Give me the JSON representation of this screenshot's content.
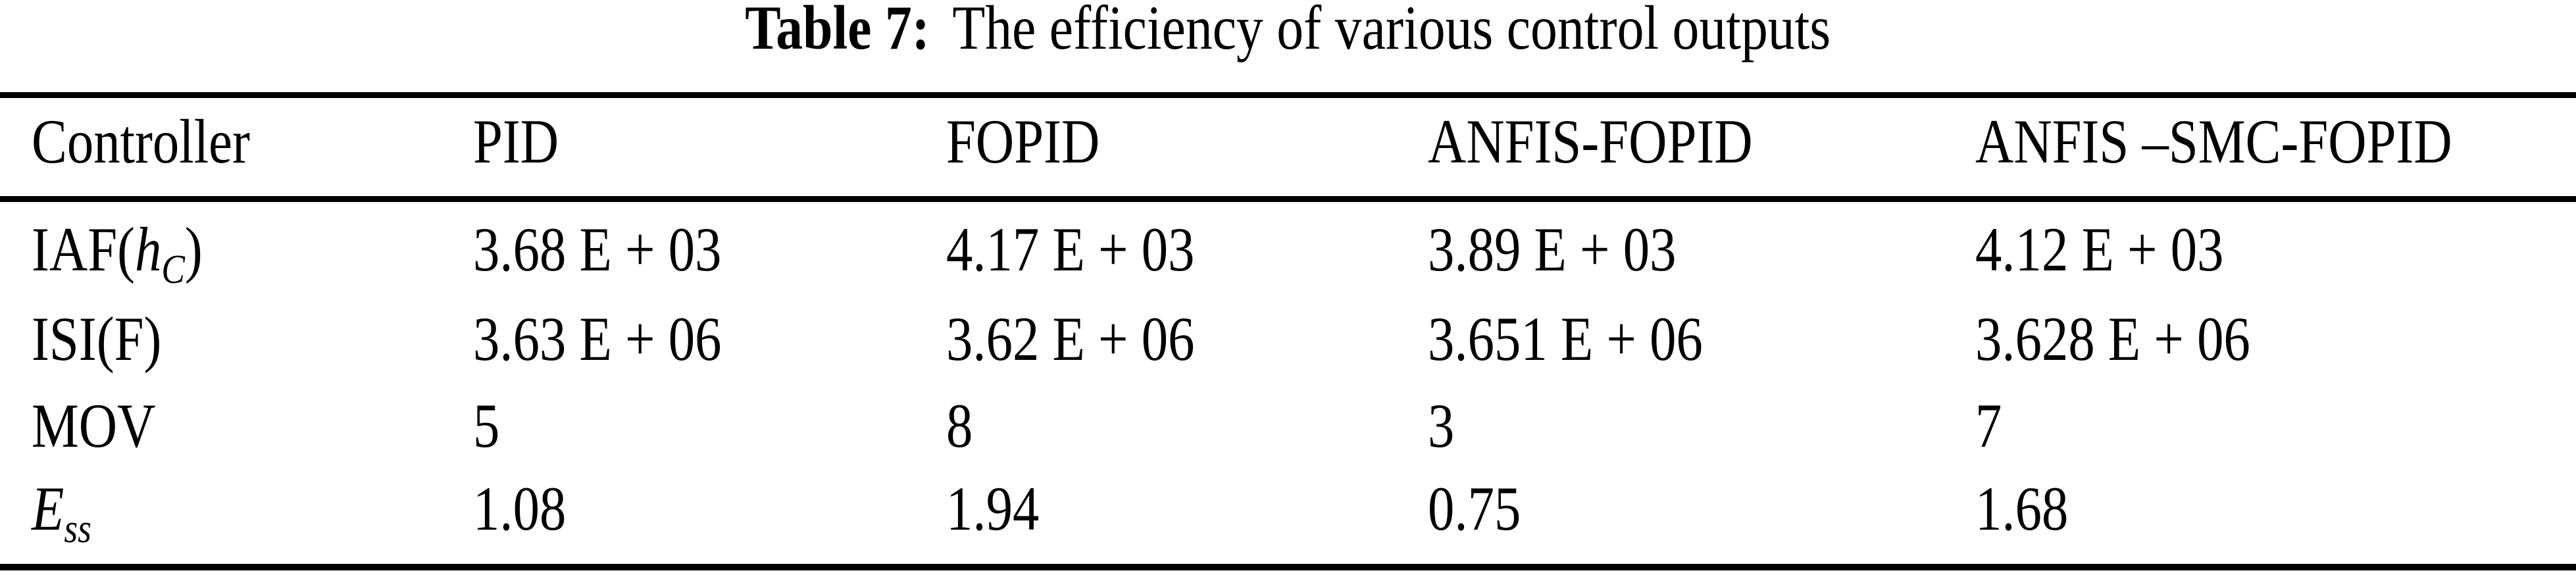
{
  "caption": {
    "label": "Table 7:",
    "text": "The efficiency of various control outputs"
  },
  "table": {
    "headers": [
      "Controller",
      "PID",
      "FOPID",
      "ANFIS-FOPID",
      "ANFIS –SMC-FOPID"
    ],
    "rows": [
      {
        "label_pre": "IAF(",
        "label_var": "h",
        "label_sub": "C",
        "label_post": ")",
        "cells": [
          "3.68 E + 03",
          "4.17 E + 03",
          "3.89 E + 03",
          "4.12 E + 03"
        ]
      },
      {
        "label_pre": "ISI(F)",
        "cells": [
          "3.63 E + 06",
          "3.62 E + 06",
          "3.651 E + 06",
          "3.628 E + 06"
        ]
      },
      {
        "label_pre": "MOV",
        "cells": [
          "5",
          "8",
          "3",
          "7"
        ]
      },
      {
        "label_var": "E",
        "label_sub": "ss",
        "cells": [
          "1.08",
          "1.94",
          "0.75",
          "1.68"
        ]
      }
    ]
  },
  "colors": {
    "background": "#ffffff",
    "text": "#000000",
    "rule": "#000000"
  }
}
